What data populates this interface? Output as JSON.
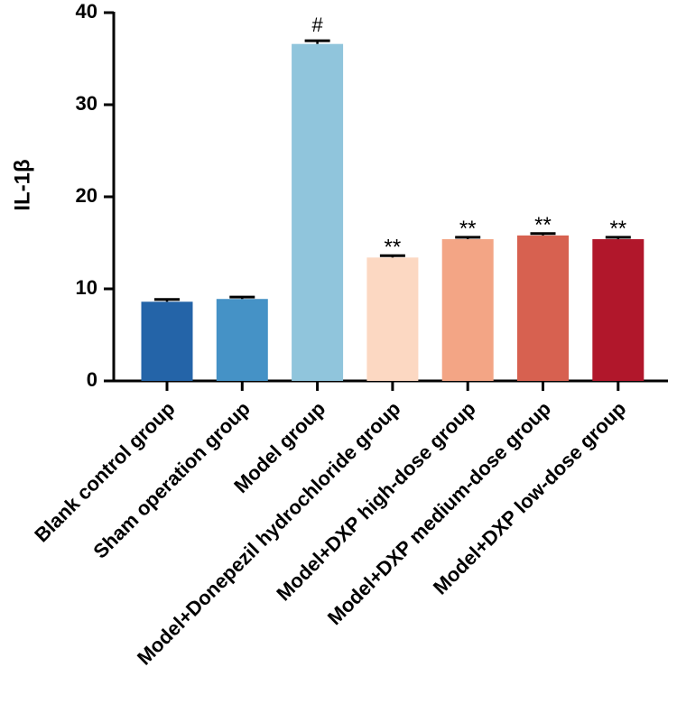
{
  "chart_data": {
    "type": "bar",
    "title": "",
    "xlabel": "",
    "ylabel": "IL-1β",
    "ylim": [
      0,
      40
    ],
    "yticks": [
      "0",
      "10",
      "20",
      "30",
      "40"
    ],
    "categories": [
      "Blank control group",
      "Sham operation group",
      "Model group",
      "Model+Donepezil hydrochloride group",
      "Model+DXP high-dose group",
      "Model+DXP medium-dose group",
      "Model+DXP low-dose group"
    ],
    "values": [
      8.6,
      8.9,
      36.6,
      13.4,
      15.4,
      15.8,
      15.4
    ],
    "errors": [
      0.25,
      0.2,
      0.35,
      0.2,
      0.2,
      0.2,
      0.2
    ],
    "annotations": [
      "",
      "",
      "#",
      "**",
      "**",
      "**",
      "**"
    ],
    "colors": [
      "#2464a8",
      "#4592c6",
      "#90c5dc",
      "#fcd8c2",
      "#f3a585",
      "#d76150",
      "#b1172b"
    ],
    "grid": false,
    "legend": "none"
  }
}
